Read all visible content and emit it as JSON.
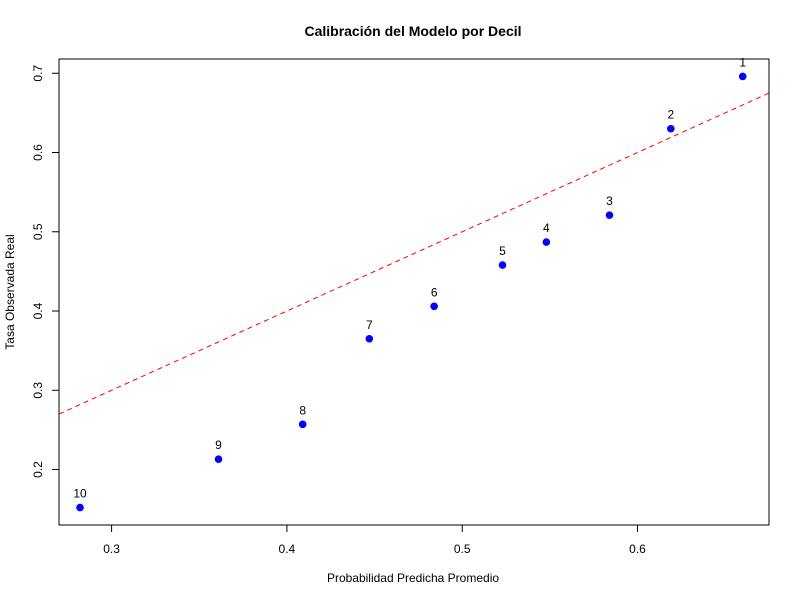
{
  "chart_data": {
    "type": "scatter",
    "title": "Calibración del Modelo por Decil",
    "xlabel": "Probabilidad Predicha Promedio",
    "ylabel": "Tasa Observada Real",
    "xlim": [
      0.27,
      0.675
    ],
    "ylim": [
      0.13,
      0.718
    ],
    "xticks": [
      "0.3",
      "0.4",
      "0.5",
      "0.6"
    ],
    "yticks": [
      "0.2",
      "0.3",
      "0.4",
      "0.5",
      "0.6",
      "0.7"
    ],
    "grid": false,
    "points": [
      {
        "label": "1",
        "x": 0.66,
        "y": 0.696
      },
      {
        "label": "2",
        "x": 0.619,
        "y": 0.63
      },
      {
        "label": "3",
        "x": 0.584,
        "y": 0.521
      },
      {
        "label": "4",
        "x": 0.548,
        "y": 0.487
      },
      {
        "label": "5",
        "x": 0.523,
        "y": 0.458
      },
      {
        "label": "6",
        "x": 0.484,
        "y": 0.406
      },
      {
        "label": "7",
        "x": 0.447,
        "y": 0.365
      },
      {
        "label": "8",
        "x": 0.409,
        "y": 0.257
      },
      {
        "label": "9",
        "x": 0.361,
        "y": 0.213
      },
      {
        "label": "10",
        "x": 0.282,
        "y": 0.152
      }
    ],
    "reference_line": {
      "x": [
        0.27,
        0.675
      ],
      "y": [
        0.27,
        0.675
      ],
      "style": "dashed"
    },
    "colors": {
      "points": "#0000ff",
      "reference_line": "#ff0000",
      "axis": "#000000"
    }
  }
}
